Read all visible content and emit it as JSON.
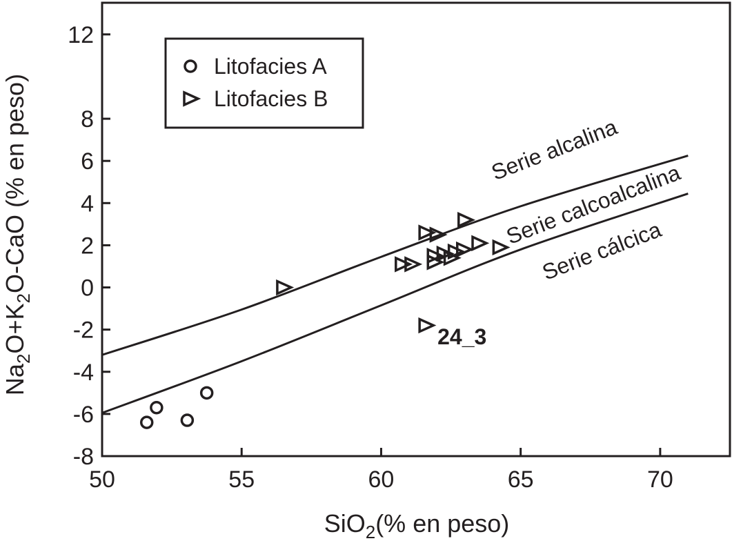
{
  "chart_data": {
    "type": "scatter",
    "xlabel": {
      "base": "SiO",
      "sub": "2",
      "rest": "(% en peso)"
    },
    "ylabel": {
      "parts": [
        "Na",
        "2",
        "O+K",
        "2",
        "O-CaO (% en peso)"
      ]
    },
    "xlim": [
      50,
      72.5
    ],
    "ylim": [
      -8,
      13.5
    ],
    "xticks": [
      50,
      55,
      60,
      65,
      70
    ],
    "yticks": [
      -8,
      -6,
      -4,
      -2,
      0,
      2,
      4,
      6,
      8,
      12
    ],
    "grid": false,
    "legend_position": "top-left",
    "series": [
      {
        "name": "Litofacies A",
        "marker": "circle",
        "points": [
          [
            51.6,
            -6.4
          ],
          [
            51.95,
            -5.7
          ],
          [
            53.05,
            -6.3
          ],
          [
            53.75,
            -5.0
          ]
        ]
      },
      {
        "name": "Litofacies B",
        "marker": "triangle-right",
        "points": [
          [
            56.5,
            0.0
          ],
          [
            61.6,
            -1.8
          ],
          [
            60.75,
            1.1
          ],
          [
            61.1,
            1.1
          ],
          [
            61.6,
            2.6
          ],
          [
            62.0,
            2.5
          ],
          [
            63.0,
            3.2
          ],
          [
            61.9,
            1.5
          ],
          [
            61.9,
            1.2
          ],
          [
            62.25,
            1.6
          ],
          [
            62.65,
            1.7
          ],
          [
            62.95,
            1.8
          ],
          [
            62.5,
            1.4
          ],
          [
            63.5,
            2.1
          ],
          [
            64.25,
            1.9
          ]
        ]
      }
    ],
    "curves": [
      {
        "name": "alcalino-calcoalcalino",
        "points": [
          [
            50,
            -3.2
          ],
          [
            55,
            -1.05
          ],
          [
            60,
            1.45
          ],
          [
            65,
            3.85
          ],
          [
            71,
            6.25
          ]
        ]
      },
      {
        "name": "calcoalcalino-calcico",
        "points": [
          [
            50,
            -5.95
          ],
          [
            55,
            -3.5
          ],
          [
            60,
            -0.85
          ],
          [
            65,
            1.8
          ],
          [
            71,
            4.45
          ]
        ]
      }
    ],
    "annotations": [
      {
        "text": "Serie alcalina",
        "x": 66.3,
        "y": 6.2,
        "angle": -21
      },
      {
        "text": "Serie calcoalcalina",
        "x": 67.7,
        "y": 3.6,
        "angle": -21
      },
      {
        "text": "Serie cálcica",
        "x": 68.0,
        "y": 1.4,
        "angle": -21
      },
      {
        "text": "24_3",
        "x": 62.9,
        "y": -2.7,
        "bold": true,
        "angle": 0
      }
    ]
  }
}
